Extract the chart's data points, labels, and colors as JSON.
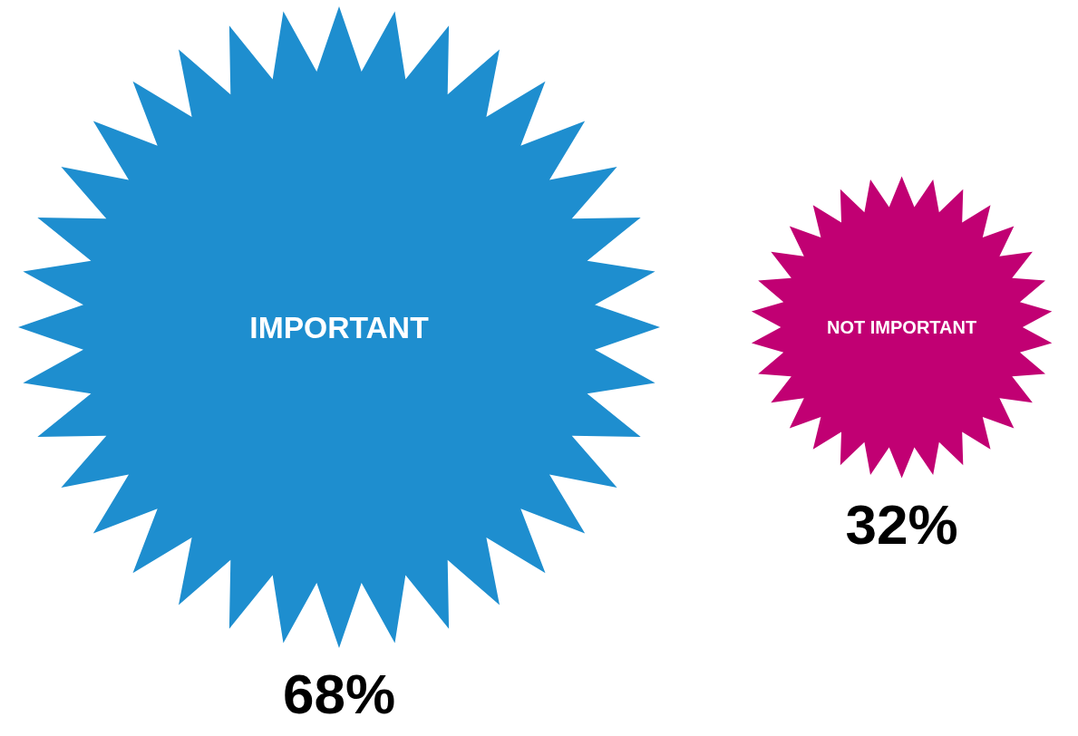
{
  "chart_data": {
    "type": "other",
    "categories": [
      "IMPORTANT",
      "NOT IMPORTANT"
    ],
    "values": [
      68,
      32
    ],
    "colors": [
      "#1e8ecf",
      "#c10073"
    ],
    "value_labels": [
      "68%",
      "32%"
    ]
  }
}
